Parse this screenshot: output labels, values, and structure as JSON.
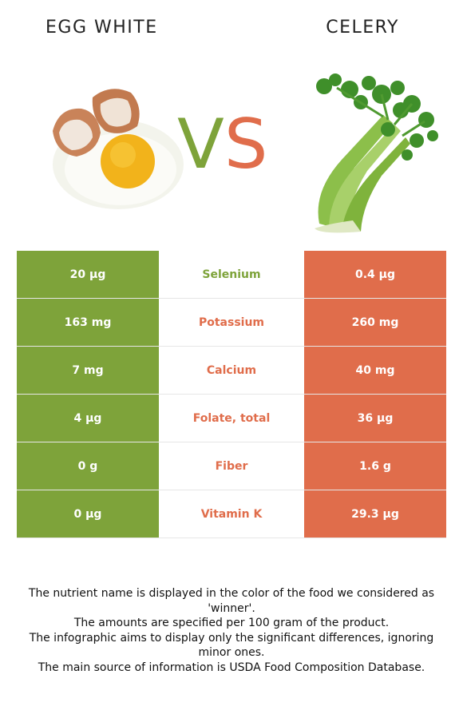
{
  "header": {
    "left_title": "EGG WHITE",
    "right_title": "CELERY",
    "vs_v": "V",
    "vs_s": "S"
  },
  "colors": {
    "winner_left": "#7ea33a",
    "winner_right": "#e06d4b"
  },
  "rows": [
    {
      "left": "20 µg",
      "nutrient": "Selenium",
      "right": "0.4 µg",
      "winner": "left"
    },
    {
      "left": "163 mg",
      "nutrient": "Potassium",
      "right": "260 mg",
      "winner": "right"
    },
    {
      "left": "7 mg",
      "nutrient": "Calcium",
      "right": "40 mg",
      "winner": "right"
    },
    {
      "left": "4 µg",
      "nutrient": "Folate, total",
      "right": "36 µg",
      "winner": "right"
    },
    {
      "left": "0 g",
      "nutrient": "Fiber",
      "right": "1.6 g",
      "winner": "right"
    },
    {
      "left": "0 µg",
      "nutrient": "Vitamin K",
      "right": "29.3 µg",
      "winner": "right"
    }
  ],
  "footer": {
    "line1": "The nutrient name is displayed in the color of the food we considered as 'winner'.",
    "line2": "The amounts are specified per 100 gram of the product.",
    "line3": "The infographic aims to display only the significant differences, ignoring minor ones.",
    "line4": "The main source of information is USDA Food Composition Database."
  }
}
